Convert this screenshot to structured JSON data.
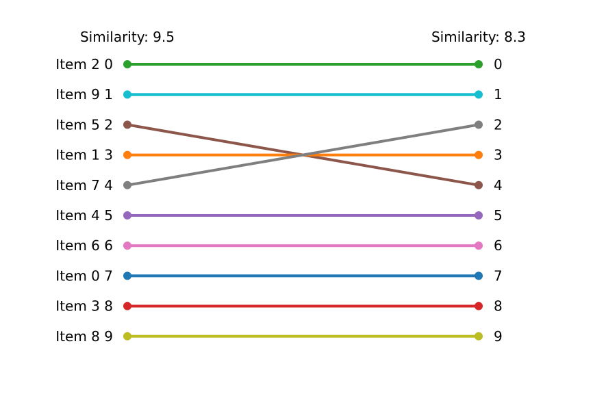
{
  "chart_data": {
    "type": "line",
    "left_header": "Similarity: 9.5",
    "right_header": "Similarity: 8.3",
    "items": [
      {
        "label": "Item 2",
        "left_rank": 0,
        "right_rank": 0,
        "color": "#2ca02c"
      },
      {
        "label": "Item 9",
        "left_rank": 1,
        "right_rank": 1,
        "color": "#17becf"
      },
      {
        "label": "Item 5",
        "left_rank": 2,
        "right_rank": 4,
        "color": "#8c564b"
      },
      {
        "label": "Item 1",
        "left_rank": 3,
        "right_rank": 3,
        "color": "#ff7f0e"
      },
      {
        "label": "Item 7",
        "left_rank": 4,
        "right_rank": 2,
        "color": "#7f7f7f"
      },
      {
        "label": "Item 4",
        "left_rank": 5,
        "right_rank": 5,
        "color": "#9467bd"
      },
      {
        "label": "Item 6",
        "left_rank": 6,
        "right_rank": 6,
        "color": "#e377c2"
      },
      {
        "label": "Item 0",
        "left_rank": 7,
        "right_rank": 7,
        "color": "#1f77b4"
      },
      {
        "label": "Item 3",
        "left_rank": 8,
        "right_rank": 8,
        "color": "#d62728"
      },
      {
        "label": "Item 8",
        "left_rank": 9,
        "right_rank": 9,
        "color": "#bcbd22"
      }
    ],
    "right_tick_labels": [
      "0",
      "1",
      "2",
      "3",
      "4",
      "5",
      "6",
      "7",
      "8",
      "9"
    ]
  }
}
